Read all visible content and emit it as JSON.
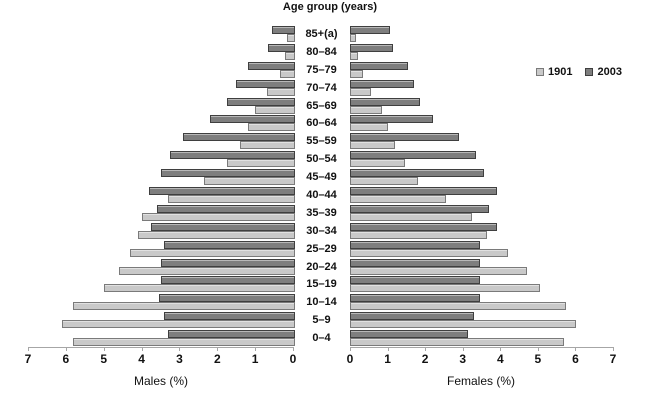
{
  "chart_data": {
    "type": "bar",
    "subtype": "population-pyramid",
    "title": "Age group (years)",
    "categories_top_to_bottom": [
      "85+(a)",
      "80–84",
      "75–79",
      "70–74",
      "65–69",
      "60–64",
      "55–59",
      "50–54",
      "45–49",
      "40–44",
      "35–39",
      "30–34",
      "25–29",
      "20–24",
      "15–19",
      "10–14",
      "5–9",
      "0–4"
    ],
    "axis": {
      "male_title": "Males (%)",
      "female_title": "Females (%)",
      "male_ticks": [
        7,
        6,
        5,
        4,
        3,
        2,
        1,
        0
      ],
      "female_ticks": [
        0,
        1,
        2,
        3,
        4,
        5,
        6,
        7
      ],
      "xlim": [
        0,
        7
      ],
      "grid": false
    },
    "legend": {
      "position": "right",
      "items": [
        {
          "label": "1901",
          "color": "#c9c9c9",
          "border": "#7a7a7a"
        },
        {
          "label": "2003",
          "color": "#7e7e7e",
          "border": "#3f3f3f"
        }
      ]
    },
    "series": [
      {
        "name": "1901",
        "color": "#c9c9c9",
        "border": "#7a7a7a",
        "males": [
          0.15,
          0.2,
          0.35,
          0.7,
          1.0,
          1.2,
          1.4,
          1.75,
          2.35,
          3.3,
          4.0,
          4.1,
          4.3,
          4.6,
          5.0,
          5.8,
          6.1,
          5.8
        ],
        "females": [
          0.1,
          0.15,
          0.3,
          0.5,
          0.8,
          0.95,
          1.15,
          1.4,
          1.75,
          2.5,
          3.2,
          3.6,
          4.15,
          4.65,
          5.0,
          5.7,
          5.95,
          5.65
        ]
      },
      {
        "name": "2003",
        "color": "#7e7e7e",
        "border": "#3f3f3f",
        "males": [
          0.55,
          0.65,
          1.2,
          1.5,
          1.75,
          2.2,
          2.9,
          3.25,
          3.5,
          3.8,
          3.6,
          3.75,
          3.4,
          3.5,
          3.5,
          3.55,
          3.4,
          3.3
        ],
        "females": [
          1.0,
          1.1,
          1.5,
          1.65,
          1.8,
          2.15,
          2.85,
          3.3,
          3.5,
          3.85,
          3.65,
          3.85,
          3.4,
          3.4,
          3.4,
          3.4,
          3.25,
          3.1
        ]
      }
    ]
  }
}
